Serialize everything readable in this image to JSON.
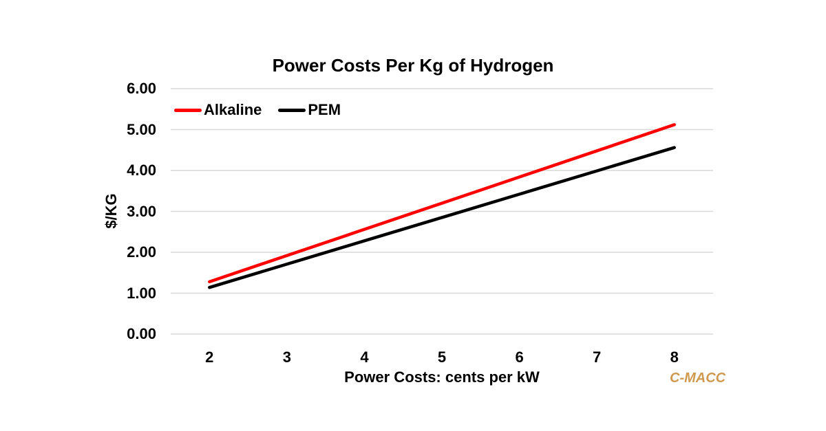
{
  "chart_data": {
    "type": "line",
    "title": "Power Costs Per Kg of Hydrogen",
    "xlabel": "Power Costs: cents per kW",
    "ylabel": "$/KG",
    "x": [
      2,
      3,
      4,
      5,
      6,
      7,
      8
    ],
    "xtick_labels": [
      "2",
      "3",
      "4",
      "5",
      "6",
      "7",
      "8"
    ],
    "ytick_labels": [
      "6.00",
      "5.00",
      "4.00",
      "3.00",
      "2.00",
      "1.00",
      "0.00"
    ],
    "ylim": [
      0,
      6
    ],
    "ytick_step": 1,
    "grid": "horizontal",
    "gridline_color": "#d9d9d9",
    "legend_position": "top-left-inside",
    "series": [
      {
        "name": "Alkaline",
        "color": "#ff0000",
        "values": [
          1.28,
          1.92,
          2.56,
          3.2,
          3.84,
          4.48,
          5.12
        ]
      },
      {
        "name": "PEM",
        "color": "#000000",
        "values": [
          1.14,
          1.71,
          2.28,
          2.85,
          3.42,
          3.99,
          4.56
        ]
      }
    ]
  },
  "branding": {
    "source_label": "C-MACC",
    "source_color": "#cf9950"
  }
}
